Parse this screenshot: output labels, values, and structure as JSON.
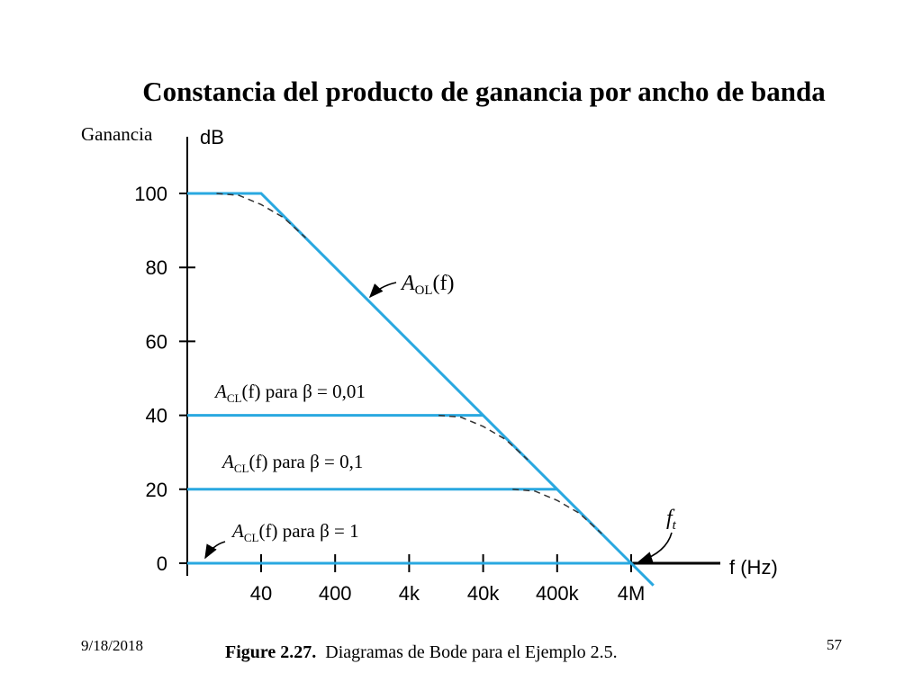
{
  "slide": {
    "title": "Constancia del producto de ganancia  por ancho de banda",
    "ganancia_label": "Ganancia",
    "footer_date": "9/18/2018",
    "page_number": "57",
    "caption_bold": "Figure 2.27.",
    "caption_text": "Diagramas de Bode para el Ejemplo 2.5."
  },
  "chart_data": {
    "type": "line",
    "title": "",
    "xlabel": "f (Hz)",
    "ylabel": "dB",
    "x_scale": "log",
    "x_ticks": [
      40,
      400,
      4000,
      40000,
      400000,
      4000000
    ],
    "x_tick_labels": [
      "40",
      "400",
      "4k",
      "40k",
      "400k",
      "4M"
    ],
    "y_ticks": [
      0,
      20,
      40,
      60,
      80,
      100
    ],
    "y_tick_labels": [
      "0",
      "20",
      "40",
      "60",
      "80",
      "100"
    ],
    "ylim": [
      0,
      100
    ],
    "colors": {
      "asymptote": "#29a8e0",
      "axis": "#000000",
      "dashed": "#333333"
    },
    "series": [
      {
        "name": "A_OL(f)",
        "label_main": "A",
        "label_sub": "OL",
        "label_tail": "(f)",
        "points": [
          [
            4,
            100
          ],
          [
            40,
            100
          ],
          [
            4000000,
            0
          ],
          [
            8000000,
            -6
          ]
        ]
      },
      {
        "name": "A_CL(f) para β = 0,01",
        "label_main": "A",
        "label_sub": "CL",
        "label_tail": "(f) para β = 0,01",
        "points": [
          [
            4,
            40
          ],
          [
            40000,
            40
          ]
        ]
      },
      {
        "name": "A_CL(f) para β = 0,1",
        "label_main": "A",
        "label_sub": "CL",
        "label_tail": "(f) para β = 0,1",
        "points": [
          [
            4,
            20
          ],
          [
            400000,
            20
          ]
        ]
      },
      {
        "name": "A_CL(f) para β = 1",
        "label_main": "A",
        "label_sub": "CL",
        "label_tail": "(f) para β = 1",
        "points": [
          [
            4,
            0
          ],
          [
            4000000,
            0
          ]
        ]
      }
    ],
    "actual_response_curves": [
      {
        "name": "A_OL actual",
        "points": [
          [
            10,
            100
          ],
          [
            20,
            99.5
          ],
          [
            40,
            97
          ],
          [
            80,
            93.5
          ],
          [
            160,
            88
          ]
        ]
      },
      {
        "name": "A_CL 0,01 actual",
        "points": [
          [
            10000,
            40
          ],
          [
            20000,
            39.5
          ],
          [
            40000,
            37
          ],
          [
            80000,
            33.5
          ],
          [
            160000,
            28
          ]
        ]
      },
      {
        "name": "A_CL 0,1 actual",
        "points": [
          [
            100000,
            20
          ],
          [
            200000,
            19.5
          ],
          [
            400000,
            17
          ],
          [
            800000,
            13.5
          ],
          [
            1600000,
            8
          ]
        ]
      }
    ],
    "annotations": [
      {
        "text_main": "f",
        "text_sub": "t",
        "x": 4000000,
        "y": 0
      }
    ]
  }
}
